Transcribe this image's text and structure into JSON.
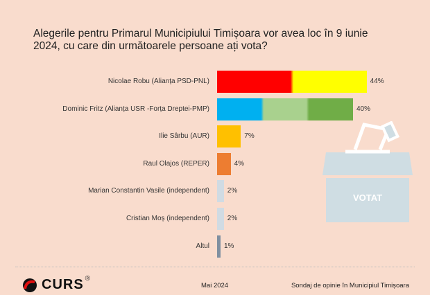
{
  "chart_data": {
    "type": "bar",
    "orientation": "horizontal",
    "title": "Alegerile pentru Primarul Municipiului Timișoara vor avea loc în 9 iunie 2024, cu care din următoarele persoane ați vota?",
    "categories": [
      "Nicolae Robu (Alianța PSD-PNL)",
      "Dominic Fritz (Alianța USR -Forța Dreptei-PMP)",
      "Ilie Sârbu (AUR)",
      "Raul Olajos (REPER)",
      "Marian Constantin Vasile (independent)",
      "Cristian Moș (independent)",
      "Altul"
    ],
    "values": [
      44,
      40,
      7,
      4,
      2,
      2,
      1
    ],
    "value_labels": [
      "44%",
      "40%",
      "7%",
      "4%",
      "2%",
      "2%",
      "1%"
    ],
    "colors": [
      [
        "#ff0000",
        "#ffff00"
      ],
      [
        "#00b0f0",
        "#a9d18e",
        "#70ad47"
      ],
      [
        "#ffc000"
      ],
      [
        "#ed7d31"
      ],
      [
        "#d0dbe3"
      ],
      [
        "#d0dbe3"
      ],
      [
        "#7f8fa0"
      ]
    ],
    "xlim": [
      0,
      50
    ],
    "grid": false,
    "legend": "none"
  },
  "graphic": {
    "ballot_box_label": "VOTAT"
  },
  "footer": {
    "logo": "CURS",
    "registered": "®",
    "date": "Mai 2024",
    "source": "Sondaj de opinie în Municipiul Timișoara"
  }
}
